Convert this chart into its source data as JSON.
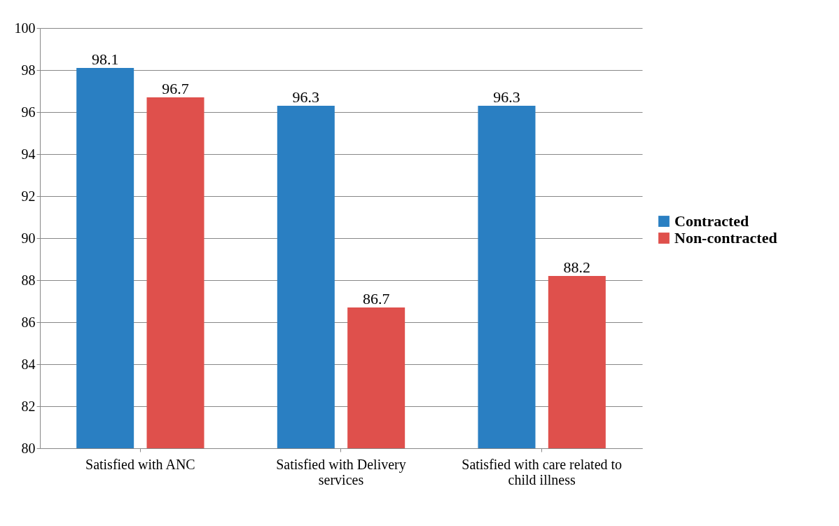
{
  "chart_data": {
    "type": "bar",
    "categories": [
      "Satisfied with ANC",
      "Satisfied with Delivery services",
      "Satisfied with care related to child illness"
    ],
    "series": [
      {
        "name": "Contracted",
        "color": "#2a7fc2",
        "values": [
          98.1,
          96.3,
          96.3
        ]
      },
      {
        "name": "Non-contracted",
        "color": "#df504c",
        "values": [
          96.7,
          86.7,
          88.2
        ]
      }
    ],
    "ylim": [
      80,
      100
    ],
    "yticks": [
      80,
      82,
      84,
      86,
      88,
      90,
      92,
      94,
      96,
      98,
      100
    ],
    "grid": "y",
    "legend": "right",
    "data_labels": true
  }
}
